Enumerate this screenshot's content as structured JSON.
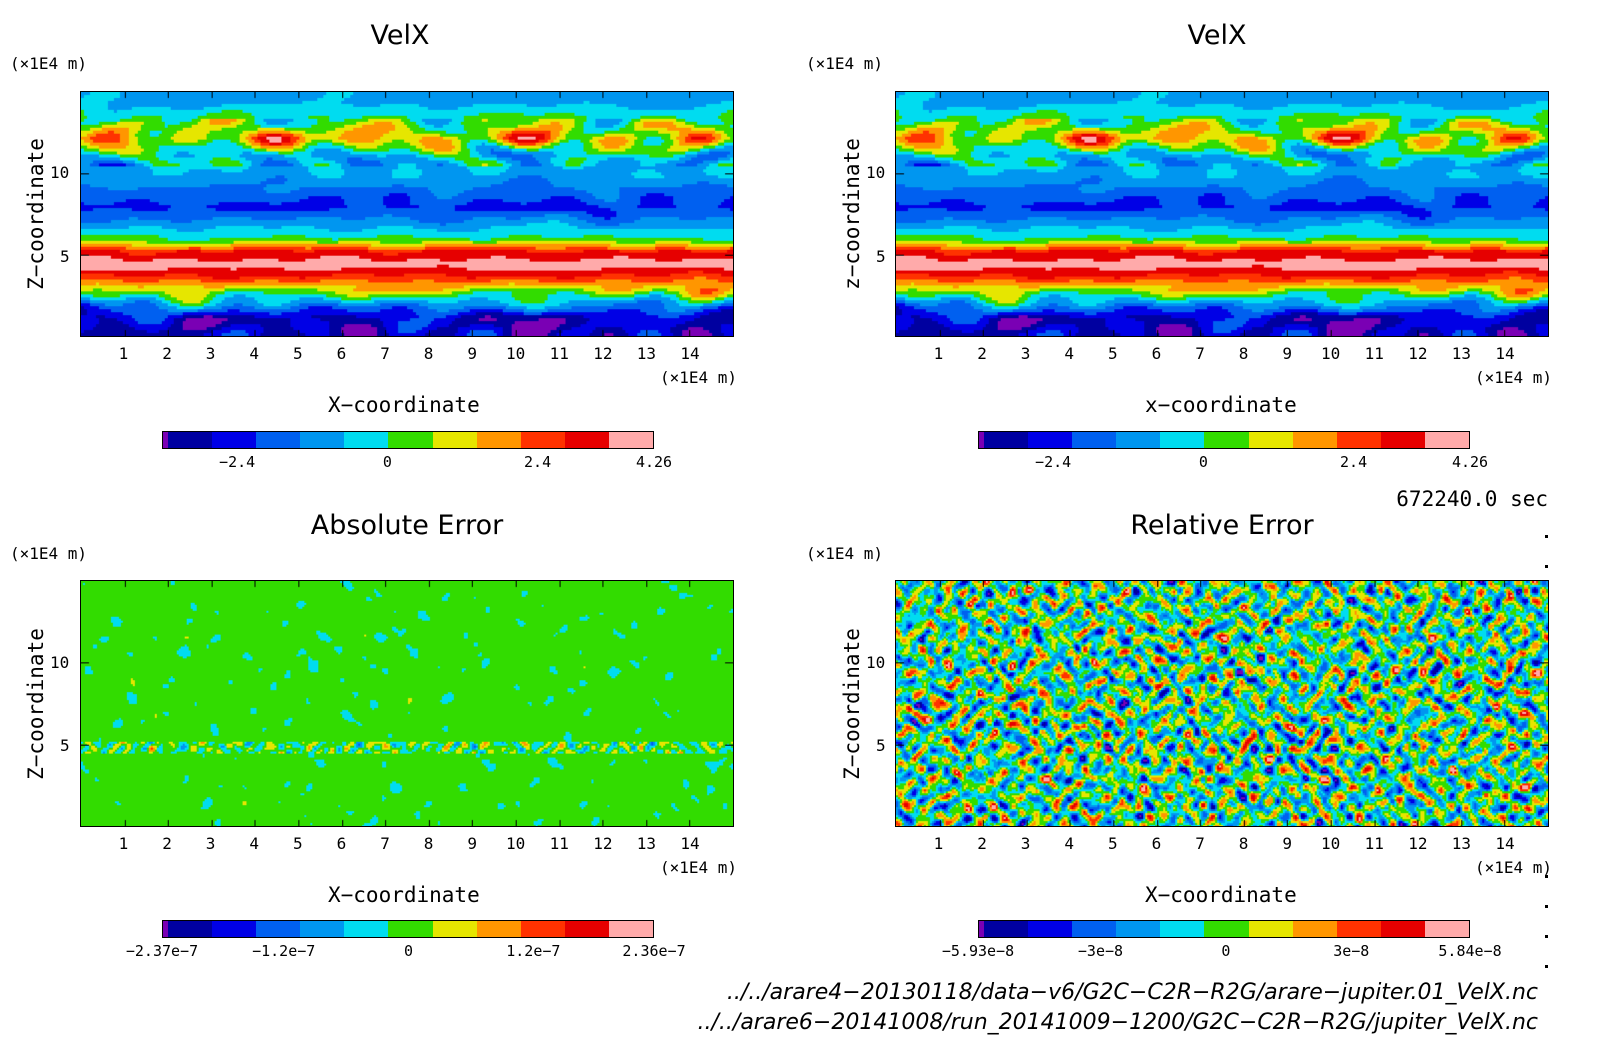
{
  "panels": [
    {
      "title": "VelX",
      "unit_top": "(×1E4 m)",
      "unit_bottom": "(×1E4 m)",
      "xlabel": "X−coordinate",
      "ylabel": "Z−coordinate",
      "xticks": [
        "1",
        "2",
        "3",
        "4",
        "5",
        "6",
        "7",
        "8",
        "9",
        "10",
        "11",
        "12",
        "13",
        "14"
      ],
      "yticks": [
        "5",
        "10"
      ],
      "colorbar_labels": [
        "−2.4",
        "0",
        "2.4",
        "4.26"
      ],
      "field": "banded"
    },
    {
      "title": "VelX",
      "unit_top": "(×1E4 m)",
      "unit_bottom": "(×1E4 m)",
      "xlabel": "x−coordinate",
      "ylabel": "z−coordinate",
      "xticks": [
        "1",
        "2",
        "3",
        "4",
        "5",
        "6",
        "7",
        "8",
        "9",
        "10",
        "11",
        "12",
        "13",
        "14"
      ],
      "yticks": [
        "5",
        "10"
      ],
      "colorbar_labels": [
        "−2.4",
        "0",
        "2.4",
        "4.26"
      ],
      "field": "banded"
    },
    {
      "title": "Absolute Error",
      "unit_top": "(×1E4 m)",
      "unit_bottom": "(×1E4 m)",
      "xlabel": "X−coordinate",
      "ylabel": "Z−coordinate",
      "xticks": [
        "1",
        "2",
        "3",
        "4",
        "5",
        "6",
        "7",
        "8",
        "9",
        "10",
        "11",
        "12",
        "13",
        "14"
      ],
      "yticks": [
        "5",
        "10"
      ],
      "colorbar_labels": [
        "−2.37e−7",
        "−1.2e−7",
        "0",
        "1.2e−7",
        "2.36e−7"
      ],
      "field": "abs_noise"
    },
    {
      "title": "Relative Error",
      "unit_top": "(×1E4 m)",
      "unit_bottom": "(×1E4 m)",
      "xlabel": "X−coordinate",
      "ylabel": "Z−coordinate",
      "xticks": [
        "1",
        "2",
        "3",
        "4",
        "5",
        "6",
        "7",
        "8",
        "9",
        "10",
        "11",
        "12",
        "13",
        "14"
      ],
      "yticks": [
        "5",
        "10"
      ],
      "colorbar_labels": [
        "−5.93e−8",
        "−3e−8",
        "0",
        "3e−8",
        "5.84e−8"
      ],
      "field": "rel_noise"
    }
  ],
  "time_label": "672240.0 sec",
  "file_paths": [
    "../../arare4−20130118/data−v6/G2C−C2R−R2G/arare−jupiter.01_VelX.nc",
    "../../arare6−20141008/run_20141009−1200/G2C−C2R−R2G/jupiter_VelX.nc"
  ],
  "colors": {
    "levels": [
      "#7a00b4",
      "#0000a0",
      "#0000e6",
      "#0060f0",
      "#0096f0",
      "#00dcf0",
      "#32dc00",
      "#e6e600",
      "#ff9600",
      "#ff3200",
      "#e60000",
      "#ffaaaa"
    ]
  },
  "chart_data": [
    {
      "type": "heatmap",
      "title": "VelX",
      "xlabel": "X−coordinate",
      "ylabel": "Z−coordinate",
      "xlim": [
        0,
        15
      ],
      "ylim": [
        0,
        15
      ],
      "x_unit": "×1E4 m",
      "y_unit": "×1E4 m",
      "color_range": [
        -3.6,
        4.26
      ],
      "colorbar_ticks": [
        -2.4,
        0,
        2.4,
        4.26
      ],
      "profile_vs_z": [
        {
          "z": 1.2,
          "value": -2.4
        },
        {
          "z": 2.5,
          "value": 0.3
        },
        {
          "z": 3.8,
          "value": 3.0
        },
        {
          "z": 4.5,
          "value": 4.0
        },
        {
          "z": 5.3,
          "value": 3.0
        },
        {
          "z": 6.0,
          "value": 0.5
        },
        {
          "z": 8.0,
          "value": -1.8
        },
        {
          "z": 10.0,
          "value": -0.5
        },
        {
          "z": 11.2,
          "value": -0.3
        },
        {
          "z": 12.2,
          "value": 1.8
        },
        {
          "z": 13.0,
          "value": 0.8
        },
        {
          "z": 14.5,
          "value": -0.5
        }
      ]
    },
    {
      "type": "heatmap",
      "title": "VelX",
      "xlabel": "x−coordinate",
      "ylabel": "z−coordinate",
      "xlim": [
        0,
        15
      ],
      "ylim": [
        0,
        15
      ],
      "x_unit": "×1E4 m",
      "y_unit": "×1E4 m",
      "color_range": [
        -3.6,
        4.26
      ],
      "colorbar_ticks": [
        -2.4,
        0,
        2.4,
        4.26
      ],
      "profile_vs_z": [
        {
          "z": 1.2,
          "value": -2.4
        },
        {
          "z": 2.5,
          "value": 0.3
        },
        {
          "z": 3.8,
          "value": 3.0
        },
        {
          "z": 4.5,
          "value": 4.0
        },
        {
          "z": 5.3,
          "value": 3.0
        },
        {
          "z": 6.0,
          "value": 0.5
        },
        {
          "z": 8.0,
          "value": -1.8
        },
        {
          "z": 10.0,
          "value": -0.5
        },
        {
          "z": 11.2,
          "value": -0.3
        },
        {
          "z": 12.2,
          "value": 1.8
        },
        {
          "z": 13.0,
          "value": 0.8
        },
        {
          "z": 14.5,
          "value": -0.5
        }
      ]
    },
    {
      "type": "heatmap",
      "title": "Absolute Error",
      "xlabel": "X−coordinate",
      "ylabel": "Z−coordinate",
      "xlim": [
        0,
        15
      ],
      "ylim": [
        0,
        15
      ],
      "x_unit": "×1E4 m",
      "y_unit": "×1E4 m",
      "color_range": [
        -2.37e-07,
        2.36e-07
      ],
      "colorbar_ticks": [
        -1.2e-07,
        0,
        1.2e-07
      ]
    },
    {
      "type": "heatmap",
      "title": "Relative Error",
      "xlabel": "X−coordinate",
      "ylabel": "Z−coordinate",
      "xlim": [
        0,
        15
      ],
      "ylim": [
        0,
        15
      ],
      "x_unit": "×1E4 m",
      "y_unit": "×1E4 m",
      "color_range": [
        -5.93e-08,
        5.84e-08
      ],
      "colorbar_ticks": [
        -3e-08,
        0,
        3e-08
      ]
    }
  ]
}
